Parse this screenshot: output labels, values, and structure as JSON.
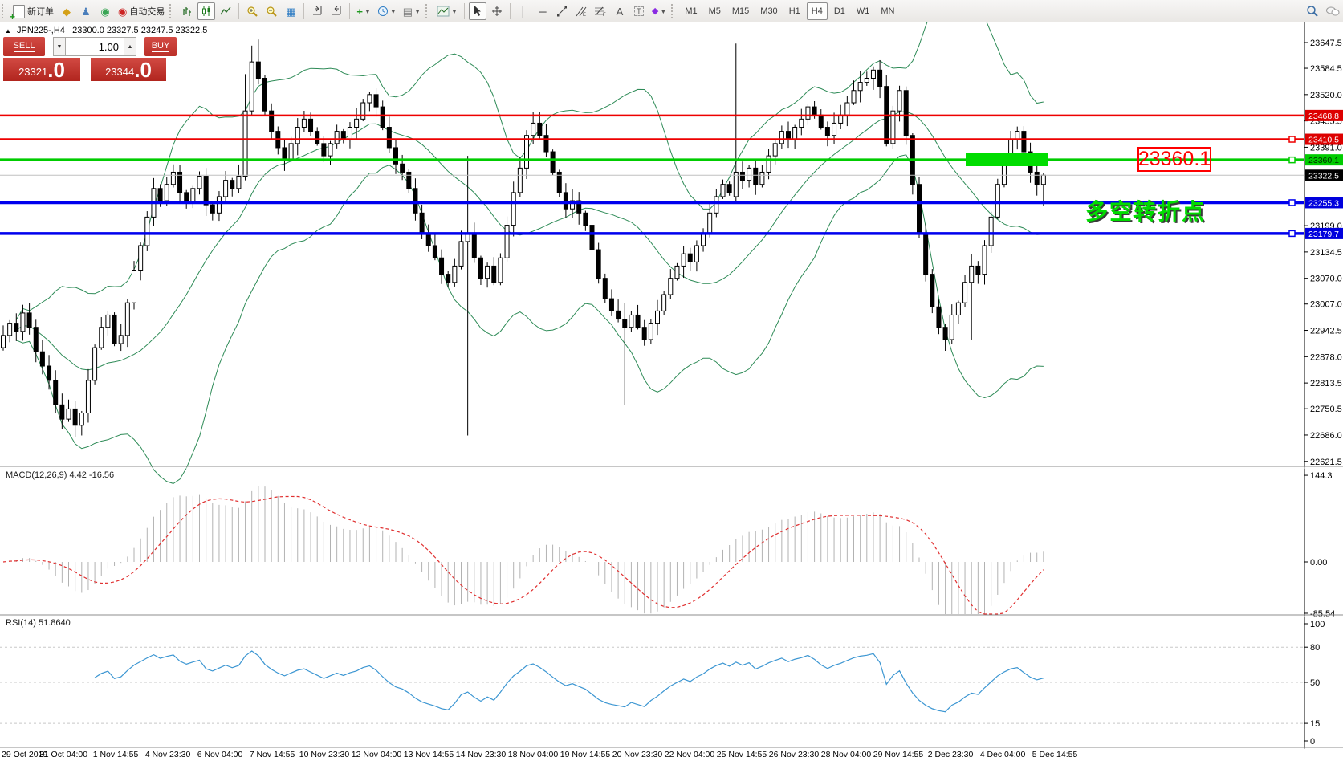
{
  "toolbar": {
    "new_order": "新订单",
    "auto_trading": "自动交易",
    "timeframes": [
      "M1",
      "M5",
      "M15",
      "M30",
      "H1",
      "H4",
      "D1",
      "W1",
      "MN"
    ],
    "active_timeframe": "H4"
  },
  "trade_panel": {
    "sell_label": "SELL",
    "buy_label": "BUY",
    "volume": "1.00",
    "sell_price": "23321",
    "sell_price_frac": ".0",
    "buy_price": "23344",
    "buy_price_frac": ".0"
  },
  "chart_header": {
    "symbol_period": "JPN225-,H4",
    "ohlc": "23300.0 23327.5 23247.5 23322.5"
  },
  "annotations": {
    "level_label": "23360.1",
    "pivot_label": "多空转折点"
  },
  "indicator_labels": {
    "macd": "MACD(12,26,9) 4.42 -16.56",
    "rsi": "RSI(14) 51.8640"
  },
  "axis": {
    "price_ticks": [
      23647.5,
      23584.5,
      23520.0,
      23455.5,
      23391.0,
      23199.0,
      23134.5,
      23070.0,
      23007.0,
      22942.5,
      22878.0,
      22813.5,
      22750.5,
      22686.0,
      22621.5
    ],
    "price_badges": [
      {
        "label": "23468.8",
        "price": 23468.8,
        "bg": "#dd0000",
        "fg": "#ffffff"
      },
      {
        "label": "23410.5",
        "price": 23410.5,
        "bg": "#dd0000",
        "fg": "#ffffff"
      },
      {
        "label": "23360.1",
        "price": 23360.1,
        "bg": "#00cc00",
        "fg": "#002a00"
      },
      {
        "label": "23322.5",
        "price": 23322.5,
        "bg": "#000000",
        "fg": "#ffffff"
      },
      {
        "label": "23255.3",
        "price": 23255.3,
        "bg": "#0000dd",
        "fg": "#ffffff"
      },
      {
        "label": "23179.7",
        "price": 23179.7,
        "bg": "#0000dd",
        "fg": "#ffffff"
      }
    ],
    "macd_ticks": [
      {
        "label": "144.3",
        "value": 144.3
      },
      {
        "label": "0.00",
        "value": 0
      },
      {
        "label": "-85.54",
        "value": -85.54
      }
    ],
    "rsi_ticks": [
      {
        "label": "100",
        "value": 100
      },
      {
        "label": "80",
        "value": 80
      },
      {
        "label": "50",
        "value": 50
      },
      {
        "label": "15",
        "value": 15
      },
      {
        "label": "0",
        "value": 0
      }
    ],
    "time_labels": [
      "29 Oct 2019",
      "31 Oct 04:00",
      "1 Nov 14:55",
      "4 Nov 23:30",
      "6 Nov 04:00",
      "7 Nov 14:55",
      "10 Nov 23:30",
      "12 Nov 04:00",
      "13 Nov 14:55",
      "14 Nov 23:30",
      "18 Nov 04:00",
      "19 Nov 14:55",
      "20 Nov 23:30",
      "22 Nov 04:00",
      "25 Nov 14:55",
      "26 Nov 23:30",
      "28 Nov 04:00",
      "29 Nov 14:55",
      "2 Dec 23:30",
      "4 Dec 04:00",
      "5 Dec 14:55"
    ]
  },
  "hlines": [
    {
      "price": 23468.8,
      "color": "#ee0000",
      "width": 2.5,
      "handle": false
    },
    {
      "price": 23410.5,
      "color": "#ee0000",
      "width": 2.5,
      "handle": true
    },
    {
      "price": 23360.1,
      "color": "#00cc00",
      "width": 3.5,
      "handle": true
    },
    {
      "price": 23322.5,
      "color": "#c0c0c0",
      "width": 1,
      "handle": false
    },
    {
      "price": 23255.3,
      "color": "#0000ee",
      "width": 3.5,
      "handle": true
    },
    {
      "price": 23179.7,
      "color": "#0000ee",
      "width": 3.5,
      "handle": true
    }
  ],
  "chart_data": {
    "type": "candlestick",
    "symbol": "JPN225-",
    "period": "H4",
    "indicators": [
      "Bollinger Bands(20,2)",
      "MACD(12,26,9)",
      "RSI(14)"
    ],
    "rsi_levels": [
      80,
      50,
      15
    ],
    "last_ohlc": [
      23300.0,
      23327.5,
      23247.5,
      23322.5
    ],
    "closes": [
      22930,
      22960,
      22940,
      22985,
      22950,
      22890,
      22855,
      22820,
      22760,
      22725,
      22750,
      22710,
      22740,
      22820,
      22900,
      22950,
      22980,
      22910,
      22930,
      23010,
      23090,
      23150,
      23220,
      23290,
      23260,
      23300,
      23330,
      23280,
      23255,
      23290,
      23320,
      23250,
      23230,
      23270,
      23310,
      23290,
      23320,
      23480,
      23600,
      23560,
      23480,
      23430,
      23390,
      23360,
      23400,
      23440,
      23460,
      23430,
      23400,
      23370,
      23400,
      23430,
      23410,
      23440,
      23460,
      23500,
      23520,
      23490,
      23440,
      23390,
      23350,
      23330,
      23290,
      23230,
      23180,
      23150,
      23120,
      23080,
      23060,
      23100,
      23160,
      23180,
      23120,
      23070,
      23100,
      23060,
      23120,
      23200,
      23280,
      23340,
      23420,
      23450,
      23420,
      23380,
      23330,
      23280,
      23240,
      23260,
      23230,
      23200,
      23140,
      23070,
      23020,
      22990,
      22970,
      22950,
      22980,
      22950,
      22920,
      22960,
      22990,
      23030,
      23070,
      23100,
      23130,
      23110,
      23150,
      23180,
      23230,
      23270,
      23300,
      23280,
      23330,
      23310,
      23340,
      23300,
      23330,
      23370,
      23400,
      23430,
      23410,
      23440,
      23460,
      23490,
      23470,
      23440,
      23420,
      23450,
      23470,
      23500,
      23530,
      23550,
      23560,
      23580,
      23540,
      23400,
      23480,
      23530,
      23420,
      23300,
      23180,
      23080,
      23000,
      22950,
      22920,
      22980,
      23010,
      23060,
      23100,
      23080,
      23150,
      23220,
      23300,
      23360,
      23410,
      23430,
      23380,
      23330,
      23300,
      23322.5
    ],
    "overrides": {
      "11": [
        22750,
        22770,
        22680,
        22710
      ],
      "12": [
        22710,
        22745,
        22685,
        22740
      ],
      "37": [
        23320,
        23570,
        23310,
        23480
      ],
      "38": [
        23480,
        23640,
        23470,
        23600
      ],
      "39": [
        23600,
        23655,
        23545,
        23560
      ],
      "71": [
        23160,
        23370,
        22685,
        23180
      ],
      "95": [
        22970,
        23010,
        22760,
        22950
      ],
      "112": [
        23270,
        23645,
        23255,
        23330
      ],
      "148": [
        23060,
        23130,
        22920,
        23100
      ],
      "159": [
        23300,
        23327.5,
        23247.5,
        23322.5
      ]
    }
  }
}
